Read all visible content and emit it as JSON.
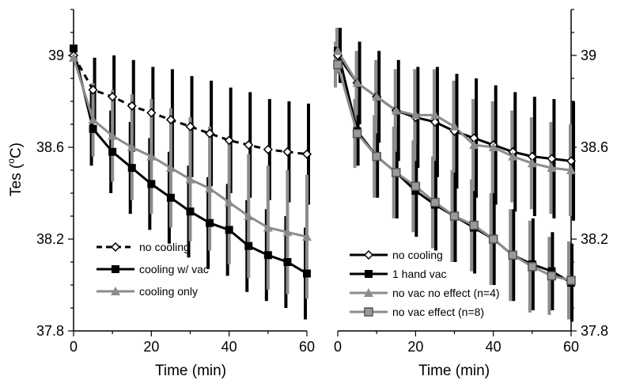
{
  "chart_data": [
    {
      "type": "line",
      "panel": "left",
      "ylabel": "Tes (",
      "ylabel_sup": "o",
      "ylabel_end": "C)",
      "xlabel": "Time (min)",
      "xlim": [
        0,
        60
      ],
      "ylim": [
        37.8,
        39.2
      ],
      "xticks": [
        "0",
        "20",
        "40",
        "60"
      ],
      "yticks": [
        "37.8",
        "38.2",
        "38.6",
        "39"
      ],
      "yticks_values": [
        37.8,
        38.2,
        38.6,
        39.0
      ],
      "y_axis_side": "left",
      "legend_position": "bottom-left",
      "x": [
        0,
        5,
        10,
        15,
        20,
        25,
        30,
        35,
        40,
        45,
        50,
        55,
        60
      ],
      "series": [
        {
          "name": "no cooling",
          "color": "#000000",
          "dash": true,
          "marker": "diamond-open",
          "values": [
            39.0,
            38.85,
            38.82,
            38.78,
            38.75,
            38.72,
            38.69,
            38.66,
            38.63,
            38.61,
            38.59,
            38.58,
            38.57
          ],
          "error": [
            0.0,
            0.14,
            0.18,
            0.2,
            0.2,
            0.22,
            0.22,
            0.23,
            0.23,
            0.23,
            0.22,
            0.22,
            0.22
          ]
        },
        {
          "name": "cooling w/ vac",
          "color": "#000000",
          "dash": false,
          "marker": "square-filled",
          "values": [
            39.03,
            38.68,
            38.58,
            38.51,
            38.44,
            38.38,
            38.32,
            38.27,
            38.24,
            38.17,
            38.13,
            38.1,
            38.05
          ],
          "error": [
            0.0,
            0.16,
            0.18,
            0.2,
            0.2,
            0.2,
            0.2,
            0.2,
            0.2,
            0.2,
            0.2,
            0.2,
            0.2
          ]
        },
        {
          "name": "cooling only",
          "color": "#8c8c8c",
          "dash": false,
          "marker": "triangle-filled",
          "values": [
            38.99,
            38.72,
            38.65,
            38.6,
            38.56,
            38.51,
            38.46,
            38.42,
            38.36,
            38.3,
            38.25,
            38.23,
            38.21
          ],
          "error": [
            0.0,
            0.16,
            0.2,
            0.23,
            0.25,
            0.26,
            0.27,
            0.27,
            0.27,
            0.27,
            0.27,
            0.27,
            0.27
          ]
        }
      ]
    },
    {
      "type": "line",
      "panel": "right",
      "ylabel": "",
      "xlabel": "Time (min)",
      "xlim": [
        0,
        60
      ],
      "ylim": [
        37.8,
        39.2
      ],
      "xticks": [
        "0",
        "20",
        "40",
        "60"
      ],
      "yticks": [
        "37.8",
        "38.2",
        "38.6",
        "39"
      ],
      "yticks_values": [
        37.8,
        38.2,
        38.6,
        39.0
      ],
      "y_axis_side": "right",
      "legend_position": "bottom-left",
      "x": [
        0,
        5,
        10,
        15,
        20,
        25,
        30,
        35,
        40,
        45,
        50,
        55,
        60
      ],
      "series": [
        {
          "name": "no cooling",
          "color": "#000000",
          "dash": false,
          "marker": "diamond-open",
          "values": [
            39.0,
            38.88,
            38.82,
            38.76,
            38.73,
            38.71,
            38.67,
            38.64,
            38.61,
            38.58,
            38.56,
            38.55,
            38.54
          ],
          "error": [
            0.12,
            0.18,
            0.2,
            0.22,
            0.22,
            0.24,
            0.25,
            0.26,
            0.26,
            0.26,
            0.26,
            0.26,
            0.26
          ]
        },
        {
          "name": "1 hand vac",
          "color": "#000000",
          "dash": false,
          "marker": "square-filled",
          "values": [
            39.02,
            38.67,
            38.56,
            38.49,
            38.41,
            38.35,
            38.3,
            38.25,
            38.2,
            38.13,
            38.09,
            38.06,
            38.01
          ],
          "error": [
            0.1,
            0.15,
            0.18,
            0.2,
            0.2,
            0.2,
            0.2,
            0.2,
            0.2,
            0.2,
            0.2,
            0.17,
            0.17
          ]
        },
        {
          "name": "no vac no effect (n=4)",
          "color": "#8c8c8c",
          "dash": false,
          "marker": "triangle-filled",
          "values": [
            39.02,
            38.88,
            38.82,
            38.76,
            38.74,
            38.74,
            38.69,
            38.61,
            38.6,
            38.56,
            38.53,
            38.51,
            38.5
          ],
          "error": [
            0.1,
            0.14,
            0.16,
            0.18,
            0.2,
            0.2,
            0.2,
            0.2,
            0.2,
            0.2,
            0.2,
            0.2,
            0.2
          ]
        },
        {
          "name": "no vac effect (n=8)",
          "color": "#8c8c8c",
          "dash": false,
          "marker": "square-gray",
          "values": [
            38.96,
            38.66,
            38.56,
            38.49,
            38.43,
            38.36,
            38.3,
            38.26,
            38.2,
            38.13,
            38.08,
            38.04,
            38.02
          ],
          "error": [
            0.1,
            0.15,
            0.18,
            0.2,
            0.2,
            0.2,
            0.2,
            0.2,
            0.2,
            0.2,
            0.2,
            0.17,
            0.17
          ]
        }
      ]
    }
  ]
}
